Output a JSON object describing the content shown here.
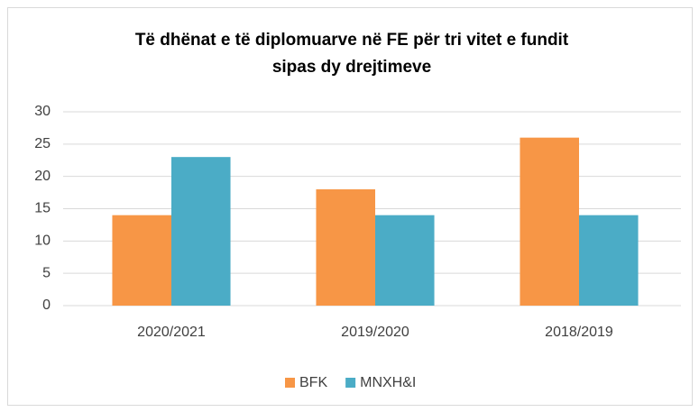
{
  "chart_data": {
    "type": "bar",
    "title": [
      "Të dhënat e të diplomuarve në FE për tri vitet e fundit",
      "sipas dy drejtimeve"
    ],
    "categories": [
      "2020/2021",
      "2019/2020",
      "2018/2019"
    ],
    "series": [
      {
        "name": "BFK",
        "color": "#f79646",
        "values": [
          14,
          18,
          26
        ]
      },
      {
        "name": "MNXH&I",
        "color": "#4bacc6",
        "values": [
          23,
          14,
          14
        ]
      }
    ],
    "ylim": [
      0,
      30
    ],
    "yticks": [
      0,
      5,
      10,
      15,
      20,
      25,
      30
    ],
    "grid": true,
    "legend": "bottom"
  }
}
